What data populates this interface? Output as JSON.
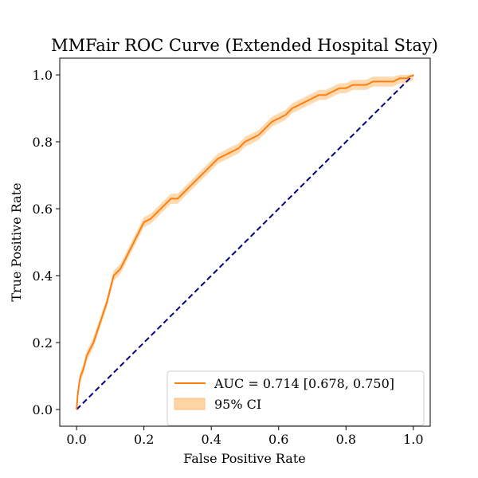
{
  "chart_data": {
    "type": "line",
    "title": "MMFair ROC Curve (Extended Hospital Stay)",
    "xlabel": "False Positive Rate",
    "ylabel": "True Positive Rate",
    "xlim": [
      -0.05,
      1.05
    ],
    "ylim": [
      -0.05,
      1.05
    ],
    "xticks": [
      "0.0",
      "0.2",
      "0.4",
      "0.6",
      "0.8",
      "1.0"
    ],
    "yticks": [
      "0.0",
      "0.2",
      "0.4",
      "0.6",
      "0.8",
      "1.0"
    ],
    "grid": false,
    "legend_position": "lower-right",
    "legend": {
      "curve_label": "AUC = 0.714 [0.678, 0.750]",
      "band_label": "95% CI"
    },
    "colors": {
      "curve": "#ff7f0e",
      "band": "#ffd4a3",
      "diagonal": "#000080"
    },
    "series": [
      {
        "name": "AUC = 0.714 [0.678, 0.750]",
        "x": [
          0.0,
          0.003,
          0.008,
          0.012,
          0.02,
          0.03,
          0.04,
          0.05,
          0.06,
          0.07,
          0.08,
          0.09,
          0.1,
          0.11,
          0.12,
          0.13,
          0.14,
          0.15,
          0.16,
          0.17,
          0.18,
          0.19,
          0.2,
          0.22,
          0.24,
          0.26,
          0.28,
          0.3,
          0.32,
          0.34,
          0.36,
          0.38,
          0.4,
          0.42,
          0.44,
          0.46,
          0.48,
          0.5,
          0.52,
          0.54,
          0.56,
          0.58,
          0.6,
          0.62,
          0.64,
          0.66,
          0.68,
          0.7,
          0.72,
          0.74,
          0.76,
          0.78,
          0.8,
          0.82,
          0.84,
          0.86,
          0.88,
          0.9,
          0.92,
          0.94,
          0.96,
          0.98,
          1.0
        ],
        "y": [
          0.0,
          0.04,
          0.08,
          0.1,
          0.12,
          0.16,
          0.18,
          0.2,
          0.23,
          0.26,
          0.29,
          0.32,
          0.36,
          0.4,
          0.41,
          0.42,
          0.44,
          0.46,
          0.48,
          0.5,
          0.52,
          0.54,
          0.56,
          0.57,
          0.59,
          0.61,
          0.63,
          0.63,
          0.65,
          0.67,
          0.69,
          0.71,
          0.73,
          0.75,
          0.76,
          0.77,
          0.78,
          0.8,
          0.81,
          0.82,
          0.84,
          0.86,
          0.87,
          0.88,
          0.9,
          0.91,
          0.92,
          0.93,
          0.94,
          0.94,
          0.95,
          0.96,
          0.96,
          0.97,
          0.97,
          0.97,
          0.98,
          0.98,
          0.98,
          0.98,
          0.99,
          0.99,
          1.0
        ],
        "ci_halfwidth": 0.015
      }
    ],
    "reference_line": {
      "x": [
        0.0,
        1.0
      ],
      "y": [
        0.0,
        1.0
      ],
      "style": "dashed"
    }
  }
}
